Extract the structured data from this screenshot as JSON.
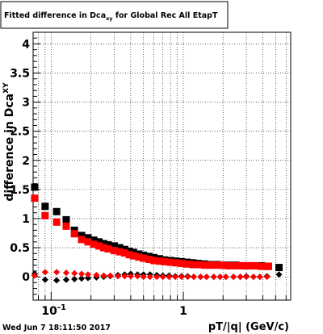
{
  "title": {
    "prefix": "Fitted difference in Dca",
    "subscript": "xy",
    "suffix": " for Global Rec All EtapT"
  },
  "footer": {
    "timestamp": "Wed Jun  7 18:11:50 2017"
  },
  "chart_data": {
    "type": "scatter",
    "title": "Fitted difference in Dca_xy for Global Rec All EtapT",
    "xlabel": "pT/|q| (GeV/c)",
    "ylabel_main": "difference in Dca",
    "ylabel_sub": "XY",
    "xscale": "log",
    "xlim": [
      0.073,
      6.5
    ],
    "ylim": [
      -0.4,
      4.2
    ],
    "grid": true,
    "colors": {
      "black_series": "#000000",
      "red_series": "#ff0000",
      "axis": "#000000",
      "grid": "#000000"
    },
    "y_ticks": [
      {
        "value": 0,
        "label": "0"
      },
      {
        "value": 0.5,
        "label": "0.5"
      },
      {
        "value": 1,
        "label": "1"
      },
      {
        "value": 1.5,
        "label": "1.5"
      },
      {
        "value": 2,
        "label": "2"
      },
      {
        "value": 2.5,
        "label": "2.5"
      },
      {
        "value": 3,
        "label": "3"
      },
      {
        "value": 3.5,
        "label": "3.5"
      },
      {
        "value": 4,
        "label": "4"
      }
    ],
    "x_ticks_major": [
      {
        "value": 0.1,
        "label": "10^{-1}"
      },
      {
        "value": 1,
        "label": "1"
      }
    ],
    "series": [
      {
        "marker": "square",
        "color": "#000000",
        "x": [
          0.075,
          0.09,
          0.11,
          0.13,
          0.15,
          0.17,
          0.19,
          0.21,
          0.23,
          0.25,
          0.27,
          0.3,
          0.33,
          0.36,
          0.39,
          0.42,
          0.46,
          0.5,
          0.55,
          0.6,
          0.66,
          0.72,
          0.8,
          0.88,
          0.97,
          1.07,
          1.18,
          1.3,
          1.45,
          1.6,
          1.8,
          2.0,
          2.2,
          2.5,
          2.8,
          3.1,
          3.5,
          3.9,
          4.4,
          5.3
        ],
        "y": [
          1.54,
          1.21,
          1.12,
          0.98,
          0.8,
          0.71,
          0.67,
          0.63,
          0.6,
          0.57,
          0.55,
          0.53,
          0.5,
          0.47,
          0.44,
          0.42,
          0.39,
          0.37,
          0.35,
          0.33,
          0.31,
          0.29,
          0.28,
          0.27,
          0.26,
          0.25,
          0.24,
          0.23,
          0.22,
          0.21,
          0.21,
          0.2,
          0.2,
          0.2,
          0.19,
          0.19,
          0.19,
          0.19,
          0.18,
          0.16
        ]
      },
      {
        "marker": "square",
        "color": "#ff0000",
        "x": [
          0.075,
          0.09,
          0.11,
          0.13,
          0.15,
          0.17,
          0.19,
          0.21,
          0.23,
          0.25,
          0.27,
          0.3,
          0.33,
          0.36,
          0.39,
          0.42,
          0.46,
          0.5,
          0.55,
          0.6,
          0.66,
          0.72,
          0.8,
          0.88,
          0.97,
          1.07,
          1.18,
          1.3,
          1.45,
          1.6,
          1.8,
          2.0,
          2.2,
          2.5,
          2.8,
          3.1,
          3.5,
          3.9,
          4.4
        ],
        "y": [
          1.35,
          1.05,
          0.94,
          0.87,
          0.74,
          0.64,
          0.6,
          0.56,
          0.53,
          0.5,
          0.48,
          0.45,
          0.43,
          0.41,
          0.38,
          0.36,
          0.34,
          0.32,
          0.3,
          0.28,
          0.27,
          0.26,
          0.25,
          0.24,
          0.23,
          0.22,
          0.21,
          0.21,
          0.2,
          0.2,
          0.2,
          0.2,
          0.19,
          0.19,
          0.19,
          0.19,
          0.19,
          0.18,
          0.18
        ]
      },
      {
        "marker": "diamond",
        "color": "#000000",
        "x": [
          0.075,
          0.09,
          0.11,
          0.13,
          0.15,
          0.17,
          0.19,
          0.22,
          0.25,
          0.28,
          0.32,
          0.36,
          0.4,
          0.45,
          0.5,
          0.56,
          0.63,
          0.7,
          0.78,
          0.87,
          0.97,
          1.08,
          1.2,
          1.35,
          1.5,
          1.7,
          1.9,
          2.1,
          2.4,
          2.7,
          3.0,
          3.4,
          3.8,
          4.3,
          5.3
        ],
        "y": [
          0.05,
          -0.05,
          -0.06,
          -0.05,
          -0.04,
          -0.03,
          -0.02,
          -0.01,
          0.0,
          0.01,
          0.03,
          0.04,
          0.05,
          0.04,
          0.04,
          0.04,
          0.03,
          0.02,
          0.02,
          0.01,
          0.01,
          0.01,
          0.0,
          0.0,
          0.0,
          0.0,
          0.0,
          0.0,
          0.0,
          0.0,
          0.01,
          0.0,
          0.0,
          0.01,
          0.04
        ]
      },
      {
        "marker": "diamond",
        "color": "#ff0000",
        "x": [
          0.075,
          0.09,
          0.11,
          0.13,
          0.15,
          0.17,
          0.19,
          0.22,
          0.25,
          0.28,
          0.32,
          0.36,
          0.4,
          0.45,
          0.5,
          0.56,
          0.63,
          0.7,
          0.78,
          0.87,
          0.97,
          1.08,
          1.2,
          1.35,
          1.5,
          1.7,
          1.9,
          2.1,
          2.4,
          2.7,
          3.0,
          3.4,
          3.8,
          4.3
        ],
        "y": [
          0.02,
          0.08,
          0.08,
          0.07,
          0.06,
          0.05,
          0.04,
          0.03,
          0.02,
          0.02,
          0.01,
          0.01,
          0.01,
          0.01,
          0.0,
          0.0,
          0.0,
          0.0,
          0.0,
          0.0,
          0.0,
          0.0,
          0.0,
          0.0,
          0.0,
          0.0,
          0.0,
          0.0,
          0.0,
          0.0,
          0.0,
          0.0,
          0.0,
          0.0
        ]
      }
    ]
  }
}
